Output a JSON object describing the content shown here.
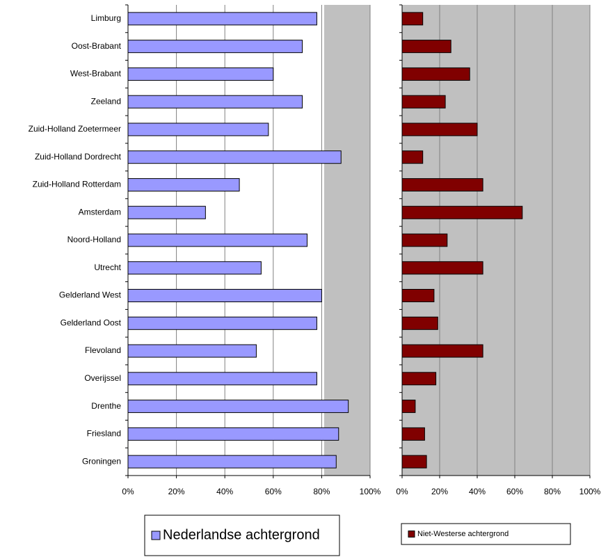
{
  "chart_data": [
    {
      "type": "bar",
      "orientation": "horizontal",
      "categories": [
        "Limburg",
        "Oost-Brabant",
        "West-Brabant",
        "Zeeland",
        "Zuid-Holland Zoetermeer",
        "Zuid-Holland Dordrecht",
        "Zuid-Holland Rotterdam",
        "Amsterdam",
        "Noord-Holland",
        "Utrecht",
        "Gelderland West",
        "Gelderland Oost",
        "Flevoland",
        "Overijssel",
        "Drenthe",
        "Friesland",
        "Groningen"
      ],
      "series": [
        {
          "name": "Nederlandse achtergrond",
          "color": "#9999ff",
          "values": [
            78,
            72,
            60,
            72,
            58,
            88,
            46,
            32,
            74,
            55,
            80,
            78,
            53,
            78,
            91,
            87,
            86
          ]
        }
      ],
      "xlim": [
        0,
        100
      ],
      "xticks": [
        {
          "value": 0,
          "label": "0%"
        },
        {
          "value": 20,
          "label": "20%"
        },
        {
          "value": 40,
          "label": "40%"
        },
        {
          "value": 60,
          "label": "60%"
        },
        {
          "value": 80,
          "label": "80%"
        },
        {
          "value": 100,
          "label": "100%"
        }
      ],
      "grid": true
    },
    {
      "type": "bar",
      "orientation": "horizontal",
      "series": [
        {
          "name": "Niet-Westerse achtergrond",
          "color": "#800000",
          "values": [
            11,
            26,
            36,
            23,
            40,
            11,
            43,
            64,
            24,
            43,
            17,
            19,
            43,
            18,
            7,
            12,
            13
          ]
        }
      ],
      "xlim": [
        0,
        100
      ],
      "xticks": [
        {
          "value": 0,
          "label": "0%"
        },
        {
          "value": 20,
          "label": "20%"
        },
        {
          "value": 40,
          "label": "40%"
        },
        {
          "value": 60,
          "label": "60%"
        },
        {
          "value": 80,
          "label": "80%"
        },
        {
          "value": 100,
          "label": "100%"
        }
      ],
      "grid": true
    }
  ]
}
